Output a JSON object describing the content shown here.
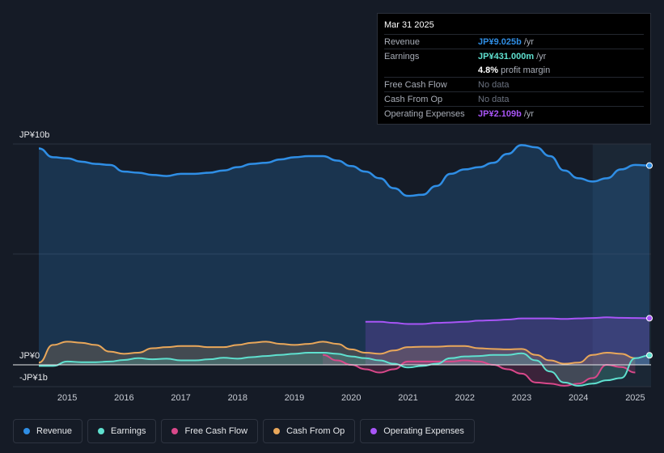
{
  "tooltip": {
    "date": "Mar 31 2025",
    "rows": [
      {
        "label": "Revenue",
        "value": "JP¥9.025b",
        "unit": "/yr",
        "color": "#2f8ee5"
      },
      {
        "label": "Earnings",
        "value": "JP¥431.000m",
        "unit": "/yr",
        "color": "#5fe0cf"
      },
      {
        "label": "",
        "value": "4.8%",
        "unit": "profit margin",
        "color": "#ffffff"
      },
      {
        "label": "Free Cash Flow",
        "value": "No data",
        "unit": "",
        "color": "#6b7280"
      },
      {
        "label": "Cash From Op",
        "value": "No data",
        "unit": "",
        "color": "#6b7280"
      },
      {
        "label": "Operating Expenses",
        "value": "JP¥2.109b",
        "unit": "/yr",
        "color": "#a855f7"
      }
    ]
  },
  "legend": [
    {
      "label": "Revenue",
      "color": "#2f8ee5"
    },
    {
      "label": "Earnings",
      "color": "#5fe0cf"
    },
    {
      "label": "Free Cash Flow",
      "color": "#d9488a"
    },
    {
      "label": "Cash From Op",
      "color": "#e9a75a"
    },
    {
      "label": "Operating Expenses",
      "color": "#a855f7"
    }
  ],
  "chart_data": {
    "type": "area",
    "title": "",
    "xlabel": "",
    "ylabel": "",
    "y_axis_labels": [
      "JP¥10b",
      "JP¥0",
      "-JP¥1b"
    ],
    "ylim": [
      -1,
      10
    ],
    "xlim": [
      2014.5,
      2025.25
    ],
    "x_ticks": [
      "2015",
      "2016",
      "2017",
      "2018",
      "2019",
      "2020",
      "2021",
      "2022",
      "2023",
      "2024",
      "2025"
    ],
    "highlight_from": 2024.25,
    "series": [
      {
        "name": "Revenue",
        "color": "#2f8ee5",
        "fill": true,
        "points": [
          [
            2014.5,
            9.8
          ],
          [
            2014.75,
            9.4
          ],
          [
            2015.0,
            9.35
          ],
          [
            2015.25,
            9.2
          ],
          [
            2015.5,
            9.1
          ],
          [
            2015.75,
            9.05
          ],
          [
            2016.0,
            8.75
          ],
          [
            2016.25,
            8.7
          ],
          [
            2016.5,
            8.6
          ],
          [
            2016.75,
            8.55
          ],
          [
            2017.0,
            8.65
          ],
          [
            2017.25,
            8.65
          ],
          [
            2017.5,
            8.7
          ],
          [
            2017.75,
            8.8
          ],
          [
            2018.0,
            8.95
          ],
          [
            2018.25,
            9.1
          ],
          [
            2018.5,
            9.15
          ],
          [
            2018.75,
            9.3
          ],
          [
            2019.0,
            9.4
          ],
          [
            2019.25,
            9.45
          ],
          [
            2019.5,
            9.45
          ],
          [
            2019.75,
            9.25
          ],
          [
            2020.0,
            9.0
          ],
          [
            2020.25,
            8.75
          ],
          [
            2020.5,
            8.45
          ],
          [
            2020.75,
            8.0
          ],
          [
            2021.0,
            7.65
          ],
          [
            2021.25,
            7.7
          ],
          [
            2021.5,
            8.1
          ],
          [
            2021.75,
            8.65
          ],
          [
            2022.0,
            8.85
          ],
          [
            2022.25,
            8.95
          ],
          [
            2022.5,
            9.15
          ],
          [
            2022.75,
            9.55
          ],
          [
            2023.0,
            9.95
          ],
          [
            2023.25,
            9.85
          ],
          [
            2023.5,
            9.45
          ],
          [
            2023.75,
            8.8
          ],
          [
            2024.0,
            8.45
          ],
          [
            2024.25,
            8.3
          ],
          [
            2024.5,
            8.45
          ],
          [
            2024.75,
            8.85
          ],
          [
            2025.0,
            9.05
          ],
          [
            2025.25,
            9.025
          ]
        ]
      },
      {
        "name": "Earnings",
        "color": "#5fe0cf",
        "fill": true,
        "points": [
          [
            2014.5,
            -0.05
          ],
          [
            2014.75,
            -0.05
          ],
          [
            2015.0,
            0.15
          ],
          [
            2015.25,
            0.12
          ],
          [
            2015.5,
            0.12
          ],
          [
            2015.75,
            0.15
          ],
          [
            2016.0,
            0.22
          ],
          [
            2016.25,
            0.3
          ],
          [
            2016.5,
            0.25
          ],
          [
            2016.75,
            0.28
          ],
          [
            2017.0,
            0.2
          ],
          [
            2017.25,
            0.2
          ],
          [
            2017.5,
            0.25
          ],
          [
            2017.75,
            0.32
          ],
          [
            2018.0,
            0.28
          ],
          [
            2018.25,
            0.35
          ],
          [
            2018.5,
            0.4
          ],
          [
            2018.75,
            0.45
          ],
          [
            2019.0,
            0.5
          ],
          [
            2019.25,
            0.55
          ],
          [
            2019.5,
            0.55
          ],
          [
            2019.75,
            0.5
          ],
          [
            2020.0,
            0.38
          ],
          [
            2020.25,
            0.3
          ],
          [
            2020.5,
            0.2
          ],
          [
            2020.75,
            0.05
          ],
          [
            2021.0,
            -0.12
          ],
          [
            2021.25,
            -0.05
          ],
          [
            2021.5,
            0.05
          ],
          [
            2021.75,
            0.3
          ],
          [
            2022.0,
            0.38
          ],
          [
            2022.25,
            0.4
          ],
          [
            2022.5,
            0.45
          ],
          [
            2022.75,
            0.45
          ],
          [
            2023.0,
            0.52
          ],
          [
            2023.25,
            0.2
          ],
          [
            2023.5,
            -0.3
          ],
          [
            2023.75,
            -0.8
          ],
          [
            2024.0,
            -0.95
          ],
          [
            2024.25,
            -0.85
          ],
          [
            2024.5,
            -0.7
          ],
          [
            2024.75,
            -0.6
          ],
          [
            2025.0,
            0.3
          ],
          [
            2025.25,
            0.43
          ]
        ]
      },
      {
        "name": "Free Cash Flow",
        "color": "#d9488a",
        "fill": true,
        "points": [
          [
            2019.5,
            0.45
          ],
          [
            2019.75,
            0.2
          ],
          [
            2020.0,
            0.0
          ],
          [
            2020.25,
            -0.2
          ],
          [
            2020.5,
            -0.35
          ],
          [
            2020.75,
            -0.2
          ],
          [
            2021.0,
            0.15
          ],
          [
            2021.25,
            0.15
          ],
          [
            2021.5,
            0.15
          ],
          [
            2021.75,
            0.15
          ],
          [
            2022.0,
            0.2
          ],
          [
            2022.25,
            0.15
          ],
          [
            2022.5,
            0.0
          ],
          [
            2022.75,
            -0.2
          ],
          [
            2023.0,
            -0.4
          ],
          [
            2023.25,
            -0.8
          ],
          [
            2023.5,
            -0.85
          ],
          [
            2023.75,
            -0.95
          ],
          [
            2024.0,
            -0.85
          ],
          [
            2024.25,
            -0.6
          ],
          [
            2024.5,
            0.0
          ],
          [
            2024.75,
            -0.1
          ],
          [
            2025.0,
            -0.35
          ]
        ]
      },
      {
        "name": "Cash From Op",
        "color": "#e9a75a",
        "fill": true,
        "points": [
          [
            2014.5,
            0.1
          ],
          [
            2014.75,
            0.9
          ],
          [
            2015.0,
            1.05
          ],
          [
            2015.25,
            1.0
          ],
          [
            2015.5,
            0.9
          ],
          [
            2015.75,
            0.6
          ],
          [
            2016.0,
            0.5
          ],
          [
            2016.25,
            0.55
          ],
          [
            2016.5,
            0.75
          ],
          [
            2016.75,
            0.8
          ],
          [
            2017.0,
            0.85
          ],
          [
            2017.25,
            0.85
          ],
          [
            2017.5,
            0.8
          ],
          [
            2017.75,
            0.8
          ],
          [
            2018.0,
            0.9
          ],
          [
            2018.25,
            1.0
          ],
          [
            2018.5,
            1.05
          ],
          [
            2018.75,
            0.95
          ],
          [
            2019.0,
            0.9
          ],
          [
            2019.25,
            0.95
          ],
          [
            2019.5,
            1.05
          ],
          [
            2019.75,
            0.95
          ],
          [
            2020.0,
            0.7
          ],
          [
            2020.25,
            0.55
          ],
          [
            2020.5,
            0.5
          ],
          [
            2020.75,
            0.65
          ],
          [
            2021.0,
            0.8
          ],
          [
            2021.25,
            0.82
          ],
          [
            2021.5,
            0.82
          ],
          [
            2021.75,
            0.85
          ],
          [
            2022.0,
            0.85
          ],
          [
            2022.25,
            0.75
          ],
          [
            2022.5,
            0.72
          ],
          [
            2022.75,
            0.7
          ],
          [
            2023.0,
            0.72
          ],
          [
            2023.25,
            0.45
          ],
          [
            2023.5,
            0.2
          ],
          [
            2023.75,
            0.05
          ],
          [
            2024.0,
            0.1
          ],
          [
            2024.25,
            0.45
          ],
          [
            2024.5,
            0.55
          ],
          [
            2024.75,
            0.5
          ],
          [
            2025.0,
            0.3
          ]
        ]
      },
      {
        "name": "Operating Expenses",
        "color": "#a855f7",
        "fill": true,
        "points": [
          [
            2020.25,
            1.95
          ],
          [
            2020.5,
            1.95
          ],
          [
            2020.75,
            1.9
          ],
          [
            2021.0,
            1.85
          ],
          [
            2021.25,
            1.85
          ],
          [
            2021.5,
            1.9
          ],
          [
            2021.75,
            1.92
          ],
          [
            2022.0,
            1.95
          ],
          [
            2022.25,
            2.0
          ],
          [
            2022.5,
            2.02
          ],
          [
            2022.75,
            2.05
          ],
          [
            2023.0,
            2.1
          ],
          [
            2023.25,
            2.1
          ],
          [
            2023.5,
            2.1
          ],
          [
            2023.75,
            2.08
          ],
          [
            2024.0,
            2.1
          ],
          [
            2024.25,
            2.12
          ],
          [
            2024.5,
            2.15
          ],
          [
            2024.75,
            2.13
          ],
          [
            2025.0,
            2.12
          ],
          [
            2025.25,
            2.109
          ]
        ]
      }
    ]
  }
}
